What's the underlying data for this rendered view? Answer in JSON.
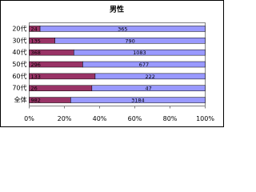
{
  "chart_data": {
    "type": "bar",
    "orientation": "horizontal",
    "stacking": "percent",
    "title": "男性",
    "categories": [
      "20代",
      "30代",
      "40代",
      "50代",
      "60代",
      "70代",
      "全体"
    ],
    "series": [
      {
        "color": "#993366",
        "values": [
          24,
          135,
          368,
          296,
          133,
          26,
          982
        ]
      },
      {
        "color": "#9999ff",
        "values": [
          365,
          790,
          1083,
          677,
          222,
          47,
          3184
        ]
      }
    ],
    "xlim": [
      0,
      100
    ],
    "xticks": [
      {
        "value": 0,
        "label": "0%"
      },
      {
        "value": 20,
        "label": "20%"
      },
      {
        "value": 40,
        "label": "40%"
      },
      {
        "value": 60,
        "label": "60%"
      },
      {
        "value": 80,
        "label": "80%"
      },
      {
        "value": 100,
        "label": "100%"
      }
    ],
    "grid": false
  }
}
